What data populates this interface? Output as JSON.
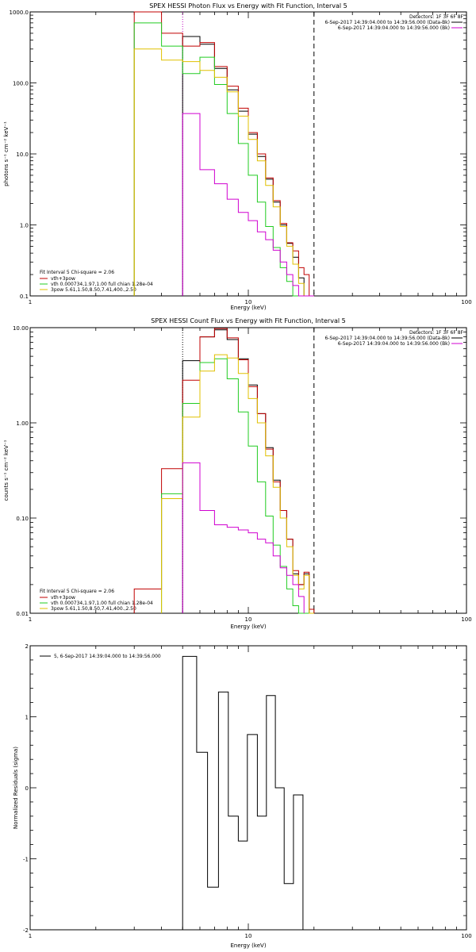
{
  "chart_data": [
    {
      "type": "line",
      "title": "SPEX HESSI Photon Flux vs Energy with Fit Function, Interval 5",
      "xlabel": "Energy (keV)",
      "ylabel": "photons s⁻¹ cm⁻² keV⁻¹",
      "xscale": "log",
      "yscale": "log",
      "xlim": [
        1,
        100
      ],
      "ylim": [
        0.1,
        1000
      ],
      "x_ticks": [
        "1",
        "10",
        "100"
      ],
      "y_ticks": [
        "0.1",
        "1.0",
        "10.0",
        "100.0",
        "1000.0"
      ],
      "edges": [
        3,
        4,
        5,
        6,
        7,
        8,
        9,
        10,
        11,
        12,
        13,
        14,
        15,
        16,
        17,
        18,
        19,
        20
      ],
      "vlines": [
        {
          "x": 5,
          "style": "dotted",
          "color": "#c000c0"
        },
        {
          "x": 20,
          "style": "dashed",
          "color": "#000000"
        }
      ],
      "series": [
        {
          "name": "",
          "color": "#000000",
          "values": [
            null,
            null,
            450,
            350,
            160,
            80,
            40,
            19,
            9.2,
            4.4,
            2.1,
            1.0,
            0.55,
            0.35,
            0.18,
            0.1,
            0.1
          ]
        },
        {
          "name": "vth+3pow",
          "color": "#c00000",
          "values": [
            1000,
            500,
            330,
            370,
            170,
            90,
            44,
            20,
            10,
            4.6,
            2.2,
            1.05,
            0.56,
            0.43,
            0.25,
            0.2,
            0.1
          ]
        },
        {
          "name": "vth 0.000734,1.97,1.00  full chian 1.28e-04",
          "color": "#22cc22",
          "values": [
            700,
            330,
            135,
            230,
            95,
            37,
            14,
            5,
            2.1,
            0.95,
            0.48,
            0.25,
            0.16,
            0.1,
            0.1,
            0.1,
            0.1
          ]
        },
        {
          "name": "3pow 5.61,1.50,8.50,7.41,400.,2.50",
          "color": "#e0c000",
          "values": [
            300,
            210,
            200,
            150,
            120,
            75,
            34,
            16,
            8,
            3.6,
            1.8,
            0.95,
            0.5,
            0.28,
            0.15,
            0.1,
            0.1
          ]
        },
        {
          "name": "",
          "color": "#d000d0",
          "values": [
            null,
            null,
            37,
            6,
            3.8,
            2.3,
            1.5,
            1.15,
            0.8,
            0.62,
            0.44,
            0.3,
            0.2,
            0.14,
            0.1,
            0.1,
            0.1
          ]
        }
      ],
      "detectors_label": "Detectors: 1F 3F 6F 8F",
      "legend_top": [
        {
          "text": "6-Sep-2017 14:39:04.000 to 14:39:56.000 (Data-Bk)",
          "color": "#000000"
        },
        {
          "text": "6-Sep-2017 14:39:04.000 to 14:39:56.000 (Bk)",
          "color": "#d000d0"
        }
      ],
      "fit_label": "Fit Interval 5   Chi-square = 2.06"
    },
    {
      "type": "line",
      "title": "SPEX HESSI Count Flux vs Energy with Fit Function, Interval 5",
      "xlabel": "Energy (keV)",
      "ylabel": "counts s⁻¹ cm⁻² keV⁻¹",
      "xscale": "log",
      "yscale": "log",
      "xlim": [
        1,
        100
      ],
      "ylim": [
        0.01,
        10
      ],
      "x_ticks": [
        "1",
        "10",
        "100"
      ],
      "y_ticks": [
        "0.01",
        "0.10",
        "1.00",
        "10.00"
      ],
      "edges": [
        3,
        4,
        5,
        6,
        7,
        8,
        9,
        10,
        11,
        12,
        13,
        14,
        15,
        16,
        17,
        18,
        19,
        20,
        21,
        22
      ],
      "vlines": [
        {
          "x": 5,
          "style": "dotted",
          "color": "#000000"
        },
        {
          "x": 20,
          "style": "dashed",
          "color": "#000000"
        }
      ],
      "series": [
        {
          "name": "",
          "color": "#000000",
          "values": [
            null,
            null,
            4.5,
            8,
            9.5,
            7.5,
            4.7,
            2.5,
            1.25,
            0.55,
            0.25,
            0.12,
            0.06,
            0.026,
            0.02,
            0.026,
            null,
            null,
            null
          ]
        },
        {
          "name": "vth+3pow",
          "color": "#c00000",
          "values": [
            0.018,
            0.33,
            2.8,
            8.0,
            9.8,
            7.8,
            4.6,
            2.4,
            1.25,
            0.53,
            0.24,
            0.12,
            0.06,
            0.028,
            0.02,
            0.027,
            0.011,
            null,
            null
          ]
        },
        {
          "name": "vth 0.000734,1.97,1.00  full chian 1.28e-04",
          "color": "#22cc22",
          "values": [
            null,
            0.18,
            1.6,
            4.3,
            4.7,
            2.9,
            1.3,
            0.57,
            0.24,
            0.105,
            0.052,
            0.031,
            0.018,
            0.012,
            0.01,
            0.01,
            null,
            null,
            null
          ]
        },
        {
          "name": "3pow 5.61,1.50,8.50,7.41,400.,2.50",
          "color": "#e0c000",
          "values": [
            null,
            0.16,
            1.15,
            3.5,
            5.2,
            4.8,
            3.3,
            1.8,
            1.0,
            0.45,
            0.21,
            0.1,
            0.05,
            0.025,
            0.018,
            0.025,
            0.01,
            null,
            null
          ]
        },
        {
          "name": "",
          "color": "#d000d0",
          "values": [
            null,
            null,
            0.38,
            0.12,
            0.085,
            0.08,
            0.075,
            0.07,
            0.06,
            0.055,
            0.04,
            0.03,
            0.025,
            0.02,
            0.015,
            null,
            null,
            null,
            null
          ]
        }
      ],
      "detectors_label": "Detectors: 1F 3F 6F 8F",
      "legend_top": [
        {
          "text": "6-Sep-2017 14:39:04.000 to 14:39:56.000 (Data-Bk)",
          "color": "#000000"
        },
        {
          "text": "6-Sep-2017 14:39:04.000 to 14:39:56.000 (Bk)",
          "color": "#d000d0"
        }
      ],
      "fit_label": "Fit Interval 5   Chi-square = 2.06"
    },
    {
      "type": "line",
      "title": "",
      "xlabel": "Energy (keV)",
      "ylabel": "Normalized Residuals (sigma)",
      "xscale": "log",
      "yscale": "linear",
      "xlim": [
        1,
        100
      ],
      "ylim": [
        -2,
        2
      ],
      "x_ticks": [
        "1",
        "10",
        "100"
      ],
      "y_ticks": [
        "-2",
        "-1",
        "0",
        "1",
        "2"
      ],
      "edges": [
        5,
        5.8,
        6.5,
        7.3,
        8.1,
        9.0,
        9.9,
        11.0,
        12.1,
        13.3,
        14.6,
        16.1,
        17.8,
        19.5
      ],
      "series": [
        {
          "name": "5,  6-Sep-2017 14:39:04.000 to 14:39:56.000",
          "color": "#000000",
          "values": [
            1.85,
            0.5,
            -1.4,
            1.35,
            -0.4,
            -0.75,
            0.75,
            -0.4,
            1.3,
            0.0,
            -1.35,
            -0.1,
            null
          ]
        }
      ]
    }
  ]
}
